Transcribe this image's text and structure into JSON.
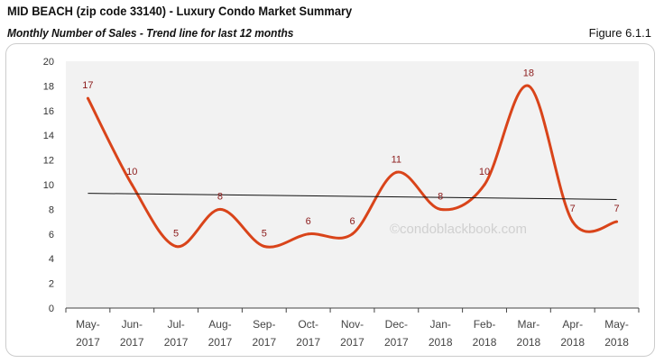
{
  "header": {
    "title": "MID BEACH (zip code 33140) - Luxury Condo Market Summary",
    "subtitle": "Monthly Number of Sales - Trend line for last 12 months",
    "figure": "Figure 6.1.1"
  },
  "chart_data": {
    "type": "line",
    "categories": [
      [
        "May-",
        "2017"
      ],
      [
        "Jun-",
        "2017"
      ],
      [
        "Jul-",
        "2017"
      ],
      [
        "Aug-",
        "2017"
      ],
      [
        "Sep-",
        "2017"
      ],
      [
        "Oct-",
        "2017"
      ],
      [
        "Nov-",
        "2017"
      ],
      [
        "Dec-",
        "2017"
      ],
      [
        "Jan-",
        "2018"
      ],
      [
        "Feb-",
        "2018"
      ],
      [
        "Mar-",
        "2018"
      ],
      [
        "Apr-",
        "2018"
      ],
      [
        "May-",
        "2018"
      ]
    ],
    "series": [
      {
        "values": [
          17,
          10,
          5,
          8,
          5,
          6,
          6,
          11,
          8,
          10,
          18,
          7,
          7
        ],
        "color": "#d9441a",
        "smooth": true,
        "data_labels": true
      }
    ],
    "trendline": {
      "type": "linear",
      "start": 9.3,
      "end": 8.8,
      "color": "#111111"
    },
    "ylim": [
      0,
      20
    ],
    "yticks": [
      0,
      2,
      4,
      6,
      8,
      10,
      12,
      14,
      16,
      18,
      20
    ],
    "grid": false,
    "plot_background": "#f2f2f2",
    "label_color": "#8b1a1a",
    "watermark": "©condoblackbook.com"
  }
}
